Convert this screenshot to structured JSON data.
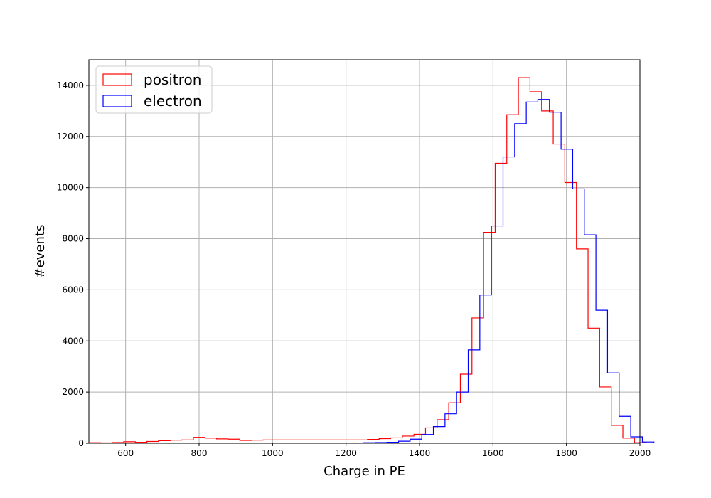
{
  "chart_data": {
    "type": "histogram",
    "xlabel": "Charge in PE",
    "ylabel": "#events",
    "xlim": [
      500,
      2000
    ],
    "ylim": [
      0,
      15000
    ],
    "x_ticks": [
      600,
      800,
      1000,
      1200,
      1400,
      1600,
      1800,
      2000
    ],
    "y_ticks": [
      0,
      2000,
      4000,
      6000,
      8000,
      10000,
      12000,
      14000
    ],
    "x_tick_labels": [
      "600",
      "800",
      "1000",
      "1200",
      "1400",
      "1600",
      "1800",
      "2000"
    ],
    "y_tick_labels": [
      "0",
      "2000",
      "4000",
      "6000",
      "8000",
      "10000",
      "12000",
      "14000"
    ],
    "grid": true,
    "legend_position": "top-left",
    "series": [
      {
        "name": "positron",
        "color": "#ff0000",
        "bin_start": 500,
        "bin_width": 31.6,
        "values": [
          20,
          15,
          30,
          60,
          40,
          70,
          100,
          120,
          130,
          230,
          200,
          170,
          160,
          110,
          120,
          130,
          130,
          130,
          130,
          130,
          130,
          130,
          130,
          130,
          150,
          180,
          210,
          280,
          350,
          600,
          920,
          1580,
          2700,
          4900,
          8250,
          10950,
          12850,
          14300,
          13750,
          13000,
          11700,
          10200,
          7600,
          4500,
          2200,
          700,
          200,
          20
        ]
      },
      {
        "name": "electron",
        "color": "#0000ff",
        "bin_start": 1185,
        "bin_width": 31.6,
        "values": [
          5,
          10,
          20,
          30,
          40,
          80,
          160,
          340,
          650,
          1150,
          2000,
          3650,
          5800,
          8500,
          11200,
          12500,
          13350,
          13450,
          12950,
          11500,
          9950,
          8150,
          5200,
          2750,
          1050,
          250,
          50
        ]
      }
    ]
  }
}
